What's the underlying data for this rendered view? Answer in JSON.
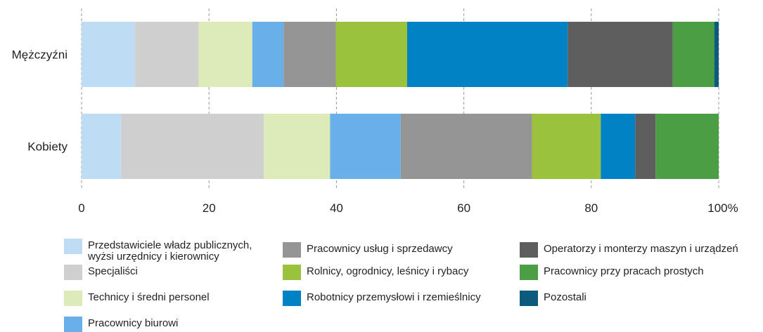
{
  "chart_data": {
    "type": "bar",
    "orientation": "horizontal",
    "stacked": true,
    "categories": [
      "Mężczyźni",
      "Kobiety"
    ],
    "x_ticks": [
      "0",
      "20",
      "40",
      "60",
      "80",
      "100%"
    ],
    "xlim": [
      0,
      100
    ],
    "grid": "vertical dashed",
    "legend_position": "bottom",
    "series": [
      {
        "name": "Przedstawiciele władz publicznych,\nwyżsi urzędnicy i kierownicy",
        "color": "#bfdcf5",
        "values": [
          8.4,
          6.2
        ]
      },
      {
        "name": "Specjaliści",
        "color": "#cfcfcf",
        "values": [
          10.0,
          22.4
        ]
      },
      {
        "name": "Technicy i średni personel",
        "color": "#ddebb8",
        "values": [
          8.4,
          10.4
        ]
      },
      {
        "name": "Pracownicy biurowi",
        "color": "#6ab0e8",
        "values": [
          4.9,
          11.1
        ]
      },
      {
        "name": "Pracownicy usług i sprzedawcy",
        "color": "#959595",
        "values": [
          8.2,
          20.6
        ]
      },
      {
        "name": "Rolnicy, ogrodnicy, leśnicy i rybacy",
        "color": "#9bc23c",
        "values": [
          11.2,
          10.8
        ]
      },
      {
        "name": "Robotnicy przemysłowi i rzemieślnicy",
        "color": "#0082c4",
        "values": [
          25.2,
          5.4
        ]
      },
      {
        "name": "Operatorzy i monterzy maszyn i urządzeń",
        "color": "#5e5e5e",
        "values": [
          16.5,
          3.2
        ]
      },
      {
        "name": "Pracownicy przy pracach prostych",
        "color": "#4c9e45",
        "values": [
          6.5,
          9.9
        ]
      },
      {
        "name": "Pozostali",
        "color": "#0c5a7c",
        "values": [
          0.7,
          0.0
        ]
      }
    ]
  },
  "legend": {
    "columns": [
      [
        0,
        1,
        2,
        3
      ],
      [
        4,
        5,
        6
      ],
      [
        7,
        8,
        9
      ]
    ]
  }
}
